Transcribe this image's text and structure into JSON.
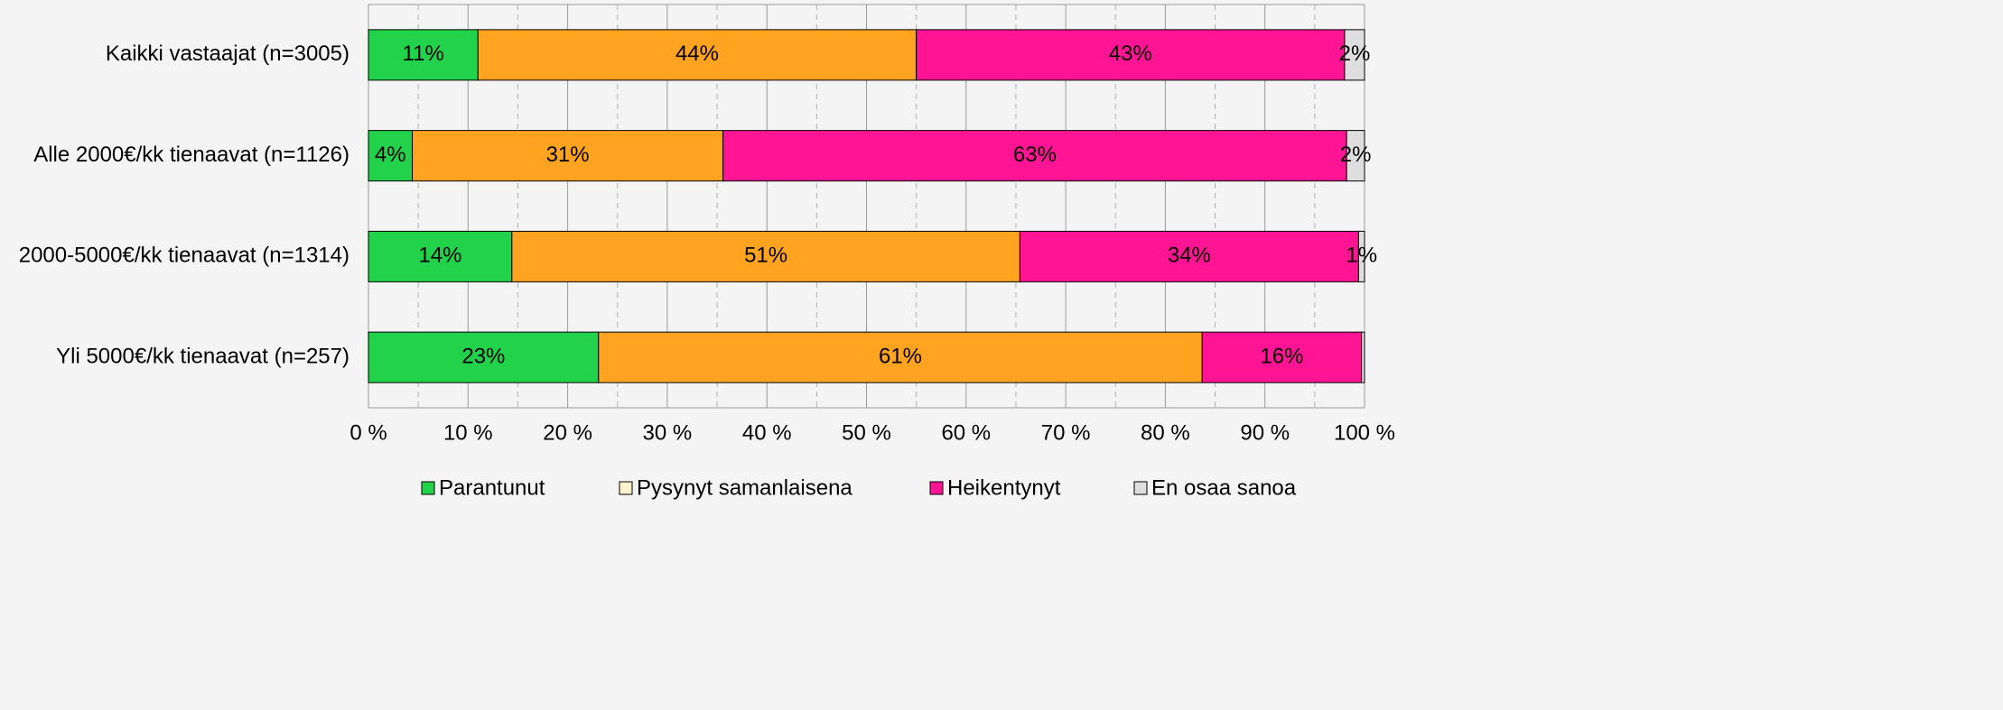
{
  "chart_data": {
    "type": "stacked-barh",
    "categories": [
      "Kaikki vastaajat (n=3005)",
      "Alle 2000€/kk tienaavat (n=1126)",
      "2000-5000€/kk tienaavat (n=1314)",
      "Yli 5000€/kk tienaavat (n=257)"
    ],
    "series": [
      {
        "name": "Parantunut",
        "color": "#22d24a",
        "values": [
          11,
          4.4,
          14.4,
          23.1
        ],
        "value_labels": [
          "11%",
          "4%",
          "14%",
          "23%"
        ]
      },
      {
        "name": "Pysynyt samanlaisena",
        "color": "#ffa320",
        "legend_color": "#fff2cc",
        "values": [
          44,
          31.2,
          51.0,
          60.6
        ],
        "value_labels": [
          "44%",
          "31%",
          "51%",
          "61%"
        ]
      },
      {
        "name": "Heikentynyt",
        "color": "#ff1493",
        "values": [
          43,
          62.6,
          34.0,
          16.0
        ],
        "value_labels": [
          "43%",
          "63%",
          "34%",
          "16%"
        ]
      },
      {
        "name": "En osaa sanoa",
        "color": "#dedede",
        "values": [
          2,
          1.8,
          0.6,
          0.3
        ],
        "value_labels": [
          "2%",
          "2%",
          "1%",
          null
        ]
      }
    ],
    "xlim": [
      0,
      100
    ],
    "xticks": [
      {
        "value": 0,
        "label": "0 %"
      },
      {
        "value": 10,
        "label": "10 %"
      },
      {
        "value": 20,
        "label": "20 %"
      },
      {
        "value": 30,
        "label": "30 %"
      },
      {
        "value": 40,
        "label": "40 %"
      },
      {
        "value": 50,
        "label": "50 %"
      },
      {
        "value": 60,
        "label": "60 %"
      },
      {
        "value": 70,
        "label": "70 %"
      },
      {
        "value": 80,
        "label": "80 %"
      },
      {
        "value": 90,
        "label": "90 %"
      },
      {
        "value": 100,
        "label": "100 %"
      }
    ],
    "minor_xticks": [
      5,
      15,
      25,
      35,
      45,
      55,
      65,
      75,
      85,
      95
    ],
    "grid": true,
    "legend": "bottom"
  }
}
